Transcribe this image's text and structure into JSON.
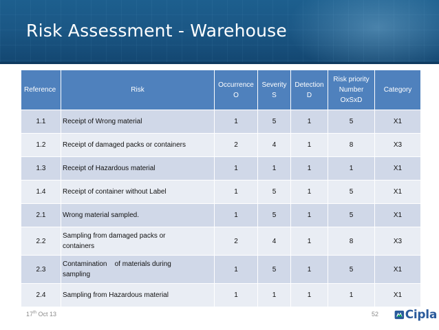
{
  "slide": {
    "title": "Risk Assessment - Warehouse",
    "date_day": "17",
    "date_suffix": "th",
    "date_rest": " Oct 13",
    "page_number": "52",
    "logo_text": "Cipla"
  },
  "table": {
    "headers": {
      "reference": "Reference",
      "risk": "Risk",
      "occurrence_line1": "Occurrence",
      "occurrence_line2": "O",
      "severity_line1": "Severity",
      "severity_line2": "S",
      "detection_line1": "Detection",
      "detection_line2": "D",
      "rpn_line1": "Risk priority",
      "rpn_line2": "Number",
      "rpn_line3": "OxSxD",
      "category": "Category"
    },
    "rows": [
      {
        "reference": "1.1",
        "risk": "Receipt of Wrong material",
        "occurrence": "1",
        "severity": "5",
        "detection": "1",
        "rpn": "5",
        "category": "X1"
      },
      {
        "reference": "1.2",
        "risk": "Receipt of damaged packs or containers",
        "occurrence": "2",
        "severity": "4",
        "detection": "1",
        "rpn": "8",
        "category": "X3"
      },
      {
        "reference": "1.3",
        "risk": "Receipt of Hazardous material",
        "occurrence": "1",
        "severity": "1",
        "detection": "1",
        "rpn": "1",
        "category": "X1"
      },
      {
        "reference": "1.4",
        "risk": "Receipt of container without Label",
        "occurrence": "1",
        "severity": "5",
        "detection": "1",
        "rpn": "5",
        "category": "X1"
      },
      {
        "reference": "2.1",
        "risk": "Wrong material sampled.",
        "occurrence": "1",
        "severity": "5",
        "detection": "1",
        "rpn": "5",
        "category": "X1"
      },
      {
        "reference": "2.2",
        "risk_line1": "Sampling from damaged packs or",
        "risk_line2": "containers",
        "occurrence": "2",
        "severity": "4",
        "detection": "1",
        "rpn": "8",
        "category": "X3"
      },
      {
        "reference": "2.3",
        "risk_line1": "Contamination    of materials during",
        "risk_line2": "sampling",
        "occurrence": "1",
        "severity": "5",
        "detection": "1",
        "rpn": "5",
        "category": "X1"
      },
      {
        "reference": "2.4",
        "risk": "Sampling from Hazardous material",
        "occurrence": "1",
        "severity": "1",
        "detection": "1",
        "rpn": "1",
        "category": "X1"
      }
    ]
  },
  "colors": {
    "banner": "#1b5785",
    "header_fill": "#4f81bd",
    "row_odd": "#d0d8e8",
    "row_even": "#e9edf4",
    "logo_blue": "#2a5a9b",
    "logo_mark": "#00a651"
  }
}
